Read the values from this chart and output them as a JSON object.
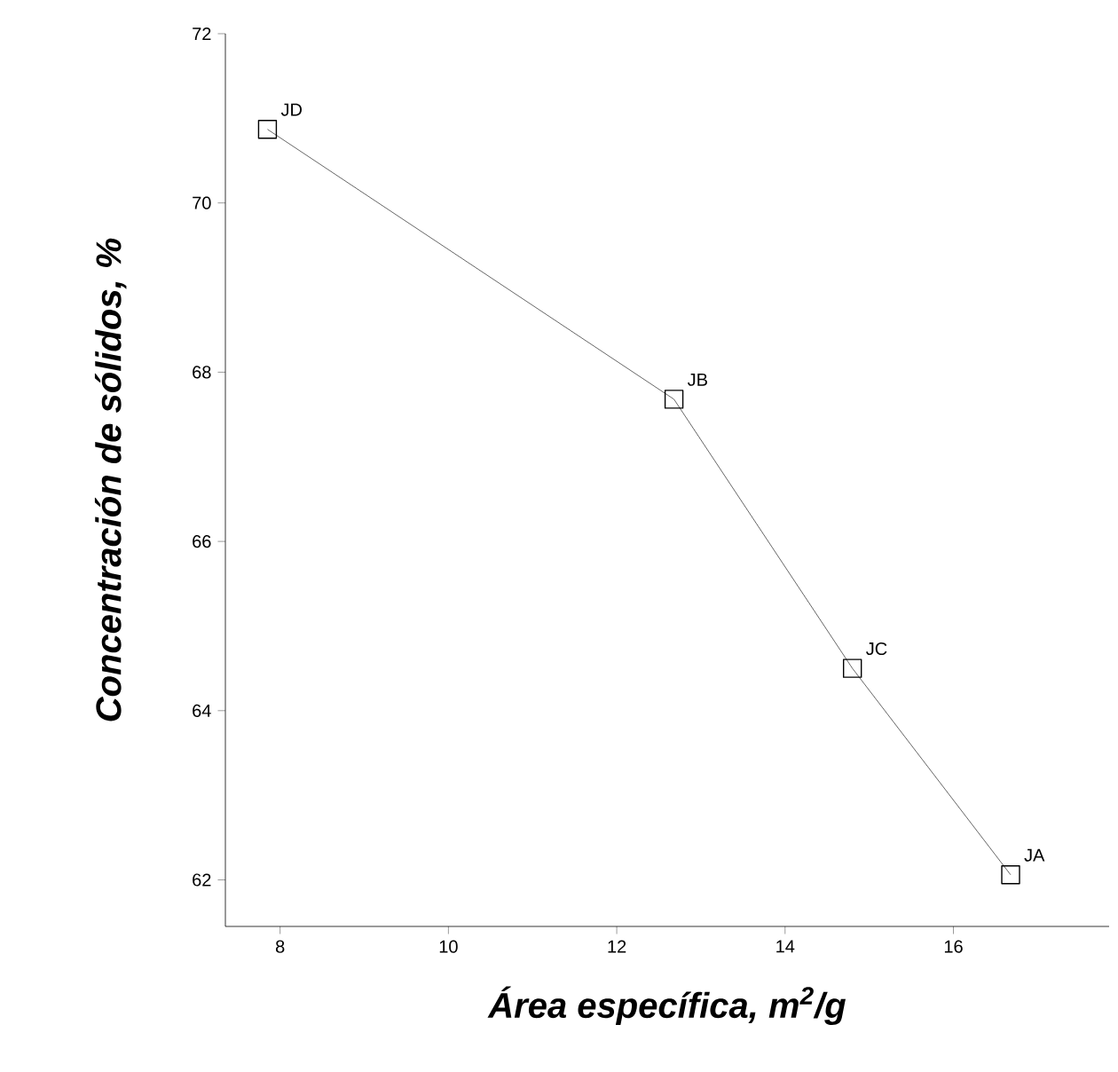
{
  "chart_data": {
    "type": "line",
    "xlabel": "Área específica, m$^{2}$/g",
    "ylabel": "Concentración de sólidos, %",
    "x": [
      7.85,
      12.68,
      14.8,
      16.68
    ],
    "series": [
      {
        "color": "#404040",
        "values": [
          70.87,
          67.68,
          64.5,
          62.06
        ]
      }
    ],
    "xlim": [
      7.35,
      17.85
    ],
    "ylim": [
      61.45,
      72
    ],
    "xticks": [
      8,
      10,
      12,
      14,
      16
    ],
    "yticks": [
      62,
      64,
      66,
      68,
      70,
      72
    ],
    "marker": "square",
    "line_style": "solid",
    "annotations": [
      {
        "text": "JD",
        "x": 7.85,
        "y": 70.87
      },
      {
        "text": "JB",
        "x": 12.68,
        "y": 67.68
      },
      {
        "text": "JC",
        "x": 14.8,
        "y": 64.5
      },
      {
        "text": "JA",
        "x": 16.68,
        "y": 62.06
      }
    ]
  }
}
